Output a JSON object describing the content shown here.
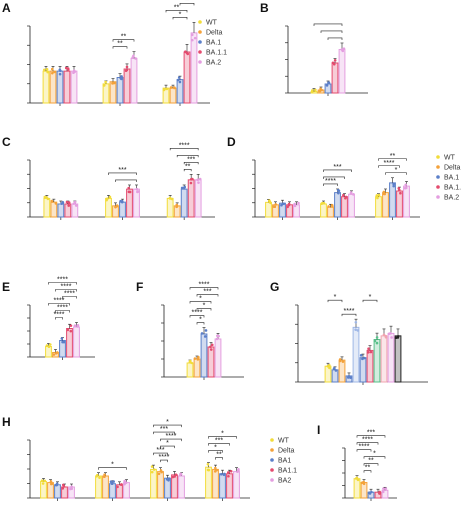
{
  "colors": {
    "WT": "#f2dc3a",
    "Delta": "#f4a23a",
    "BA.1": "#5b7fc9",
    "BA.1.1": "#e44b6e",
    "BA.2": "#e49ee0",
    "black": "#222222",
    "lime": "#b6e35b",
    "green": "#58c08a",
    "pink2": "#f0a4b0",
    "lightblue": "#9fb7e6"
  },
  "chart_data": [
    {
      "panel": "A",
      "type": "bar",
      "series_order": [
        "WT",
        "Delta",
        "BA.1",
        "BA.1.1",
        "BA.2"
      ],
      "groups": [
        [
          3,
          3,
          3,
          3,
          3
        ],
        [
          1.8,
          2.0,
          2.4,
          3.2,
          4.2
        ],
        [
          1.4,
          1.4,
          2.2,
          4.8,
          6.6
        ]
      ],
      "ylim": [
        0,
        8
      ],
      "legend": [
        "WT",
        "Delta",
        "BA.1",
        "BA.1.1",
        "BA.2"
      ],
      "sig": [
        {
          "g": 1,
          "a": 1,
          "b": 4,
          "lvl": 0,
          "label": "**"
        },
        {
          "g": 1,
          "a": 1,
          "b": 3,
          "lvl": 1,
          "label": "**"
        },
        {
          "g": 2,
          "a": 0,
          "b": 4,
          "lvl": 0,
          "label": "****"
        },
        {
          "g": 2,
          "a": 1,
          "b": 4,
          "lvl": 1,
          "label": "****"
        },
        {
          "g": 2,
          "a": 2,
          "b": 4,
          "lvl": 2,
          "label": "**"
        },
        {
          "g": 2,
          "a": 0,
          "b": 3,
          "lvl": 3,
          "label": "**"
        },
        {
          "g": 2,
          "a": 1,
          "b": 3,
          "lvl": 4,
          "label": "*"
        }
      ]
    },
    {
      "panel": "B",
      "type": "bar",
      "series_order": [
        "WT",
        "Delta",
        "BA.1",
        "BA.1.1",
        "BA.2"
      ],
      "groups": [
        [
          0.1,
          0.2,
          0.6,
          2.0,
          2.9
        ]
      ],
      "ylim": [
        0,
        5
      ],
      "sig": [
        {
          "g": 0,
          "a": 0,
          "b": 4,
          "lvl": 0,
          "label": ""
        },
        {
          "g": 0,
          "a": 1,
          "b": 4,
          "lvl": 1,
          "label": ""
        },
        {
          "g": 0,
          "a": 2,
          "b": 4,
          "lvl": 2,
          "label": ""
        }
      ]
    },
    {
      "panel": "C",
      "type": "bar",
      "series_order": [
        "WT",
        "Delta",
        "BA.1",
        "BA.1.1",
        "BA.2"
      ],
      "groups": [
        [
          2.0,
          1.6,
          1.4,
          1.4,
          1.4
        ],
        [
          2.0,
          1.2,
          1.6,
          3.0,
          3.0
        ],
        [
          2.0,
          1.2,
          3.0,
          4.0,
          4.0
        ]
      ],
      "ylim": [
        0,
        7
      ],
      "sig": [
        {
          "g": 1,
          "a": 0,
          "b": 4,
          "lvl": 0,
          "label": "***"
        },
        {
          "g": 1,
          "a": 1,
          "b": 4,
          "lvl": 1,
          "label": ""
        },
        {
          "g": 2,
          "a": 0,
          "b": 4,
          "lvl": 0,
          "label": "****"
        },
        {
          "g": 2,
          "a": 1,
          "b": 4,
          "lvl": 1,
          "label": ""
        },
        {
          "g": 2,
          "a": 2,
          "b": 4,
          "lvl": 2,
          "label": "***"
        },
        {
          "g": 2,
          "a": 2,
          "b": 3,
          "lvl": 3,
          "label": "**"
        }
      ]
    },
    {
      "panel": "D",
      "type": "bar",
      "series_order": [
        "WT",
        "Delta",
        "BA.1",
        "BA.1.1",
        "BA.2"
      ],
      "groups": [
        [
          1.8,
          1.5,
          1.7,
          1.5,
          1.5
        ],
        [
          1.6,
          1.2,
          3.0,
          2.5,
          2.8
        ],
        [
          2.5,
          3.0,
          4.2,
          3.2,
          3.8
        ]
      ],
      "ylim": [
        0,
        8
      ],
      "legend": [
        "WT",
        "Delta",
        "BA.1",
        "BA.1.1",
        "BA.2"
      ],
      "legend_shown": [
        "WT",
        "Delta",
        "BA.1",
        "BA.1.",
        "BA.2"
      ],
      "sig": [
        {
          "g": 1,
          "a": 0,
          "b": 4,
          "lvl": 0,
          "label": "***"
        },
        {
          "g": 1,
          "a": 0,
          "b": 3,
          "lvl": 1,
          "label": ""
        },
        {
          "g": 1,
          "a": 0,
          "b": 2,
          "lvl": 2,
          "label": "****"
        },
        {
          "g": 2,
          "a": 0,
          "b": 4,
          "lvl": 0,
          "label": "**"
        },
        {
          "g": 2,
          "a": 0,
          "b": 3,
          "lvl": 1,
          "label": "****"
        },
        {
          "g": 2,
          "a": 1,
          "b": 4,
          "lvl": 2,
          "label": "*"
        }
      ]
    },
    {
      "panel": "E",
      "type": "bar",
      "series_order": [
        "WT",
        "Delta",
        "BA.1",
        "BA.1.1",
        "BA.2"
      ],
      "groups": [
        [
          1.4,
          0.6,
          2.2,
          3.8,
          4.0
        ]
      ],
      "ylim": [
        0,
        8
      ],
      "sig": [
        {
          "g": 0,
          "a": 0,
          "b": 4,
          "lvl": 0,
          "label": "****"
        },
        {
          "g": 0,
          "a": 1,
          "b": 4,
          "lvl": 1,
          "label": "****"
        },
        {
          "g": 0,
          "a": 2,
          "b": 4,
          "lvl": 2,
          "label": "****"
        },
        {
          "g": 0,
          "a": 0,
          "b": 3,
          "lvl": 3,
          "label": "****"
        },
        {
          "g": 0,
          "a": 1,
          "b": 3,
          "lvl": 4,
          "label": "****"
        },
        {
          "g": 0,
          "a": 1,
          "b": 2,
          "lvl": 5,
          "label": "****"
        }
      ]
    },
    {
      "panel": "F",
      "type": "bar",
      "series_order": [
        "WT",
        "Delta",
        "BA.1",
        "BA.1.1",
        "BA.2"
      ],
      "groups": [
        [
          1.4,
          1.8,
          4.3,
          3.0,
          3.8
        ]
      ],
      "ylim": [
        0,
        8
      ],
      "sig": [
        {
          "g": 0,
          "a": 0,
          "b": 4,
          "lvl": 0,
          "label": "****"
        },
        {
          "g": 0,
          "a": 1,
          "b": 4,
          "lvl": 1,
          "label": "***"
        },
        {
          "g": 0,
          "a": 0,
          "b": 3,
          "lvl": 2,
          "label": "*"
        },
        {
          "g": 0,
          "a": 1,
          "b": 3,
          "lvl": 3,
          "label": "*"
        },
        {
          "g": 0,
          "a": 0,
          "b": 2,
          "lvl": 4,
          "label": "****"
        },
        {
          "g": 0,
          "a": 1,
          "b": 2,
          "lvl": 5,
          "label": "*"
        }
      ]
    },
    {
      "panel": "G",
      "type": "bar",
      "bar_colors": [
        "WT",
        "BA.1",
        "Delta",
        "BA.1",
        "lightblue",
        "BA.1",
        "BA.1.1",
        "green",
        "pink2",
        "BA.2",
        "black"
      ],
      "groups": [
        [
          1.3,
          1.0,
          1.8,
          0.5,
          4.5,
          2.0,
          2.6,
          3.5,
          3.8,
          4.0,
          3.8
        ]
      ],
      "ylim": [
        0,
        7
      ],
      "sig": [
        {
          "g": 0,
          "a": 0,
          "b": 2,
          "lvl": 0,
          "label": "*"
        },
        {
          "g": 0,
          "a": 2,
          "b": 4,
          "lvl": 2,
          "label": "****"
        },
        {
          "g": 0,
          "a": 5,
          "b": 7,
          "lvl": 0,
          "label": "*"
        }
      ]
    },
    {
      "panel": "H",
      "type": "bar",
      "series_order": [
        "WT",
        "Delta",
        "BA.1",
        "BA.1.1",
        "BA.2"
      ],
      "groups": [
        [
          1.5,
          1.4,
          1.2,
          1.0,
          1.0
        ],
        [
          2.0,
          2.0,
          1.3,
          1.2,
          1.4
        ],
        [
          2.6,
          2.4,
          1.8,
          2.1,
          2.0
        ],
        [
          2.8,
          2.6,
          2.2,
          2.2,
          2.4
        ]
      ],
      "ylim": [
        0,
        6
      ],
      "legend": [
        "WT",
        "Delta",
        "BA1",
        "BA1.1",
        "BA2"
      ],
      "sig": [
        {
          "g": 1,
          "a": 0,
          "b": 4,
          "lvl": 0,
          "label": "*"
        },
        {
          "g": 2,
          "a": 0,
          "b": 4,
          "lvl": 0,
          "label": "*"
        },
        {
          "g": 2,
          "a": 0,
          "b": 3,
          "lvl": 1,
          "label": "***"
        },
        {
          "g": 2,
          "a": 1,
          "b": 4,
          "lvl": 2,
          "label": "****"
        },
        {
          "g": 2,
          "a": 1,
          "b": 3,
          "lvl": 3,
          "label": "*"
        },
        {
          "g": 2,
          "a": 0,
          "b": 2,
          "lvl": 4,
          "label": "***"
        },
        {
          "g": 2,
          "a": 1,
          "b": 2,
          "lvl": 5,
          "label": "****"
        },
        {
          "g": 3,
          "a": 0,
          "b": 4,
          "lvl": 0,
          "label": "*"
        },
        {
          "g": 3,
          "a": 0,
          "b": 3,
          "lvl": 1,
          "label": "***"
        },
        {
          "g": 3,
          "a": 0,
          "b": 2,
          "lvl": 2,
          "label": "*"
        },
        {
          "g": 3,
          "a": 1,
          "b": 2,
          "lvl": 3,
          "label": "**"
        }
      ]
    },
    {
      "panel": "I",
      "type": "bar",
      "series_order": [
        "WT",
        "Delta",
        "BA.1",
        "BA.1.1",
        "BA.2"
      ],
      "groups": [
        [
          2.0,
          1.6,
          0.6,
          0.6,
          0.8
        ]
      ],
      "ylim": [
        0,
        6
      ],
      "sig": [
        {
          "g": 0,
          "a": 0,
          "b": 4,
          "lvl": 0,
          "label": "***"
        },
        {
          "g": 0,
          "a": 0,
          "b": 3,
          "lvl": 1,
          "label": "****"
        },
        {
          "g": 0,
          "a": 0,
          "b": 2,
          "lvl": 2,
          "label": "****"
        },
        {
          "g": 0,
          "a": 1,
          "b": 4,
          "lvl": 3,
          "label": "*"
        },
        {
          "g": 0,
          "a": 1,
          "b": 3,
          "lvl": 4,
          "label": "**"
        },
        {
          "g": 0,
          "a": 1,
          "b": 2,
          "lvl": 5,
          "label": "**"
        }
      ]
    }
  ]
}
